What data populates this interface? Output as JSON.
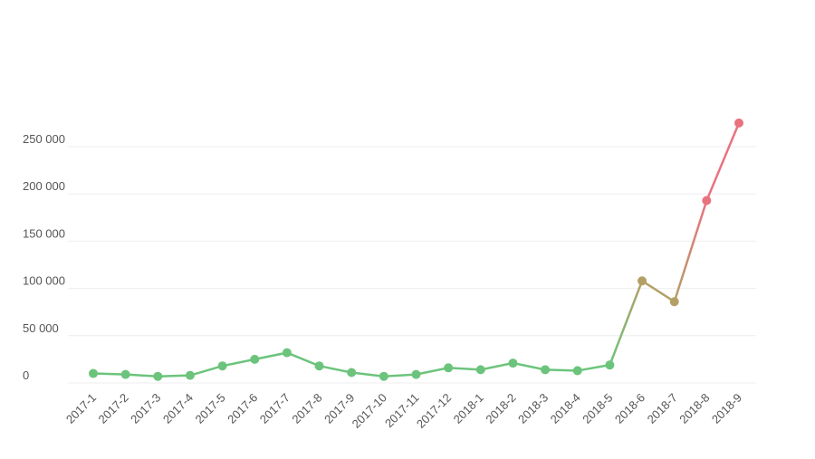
{
  "chart_data": {
    "type": "line",
    "categories": [
      "2017-1",
      "2017-2",
      "2017-3",
      "2017-4",
      "2017-5",
      "2017-6",
      "2017-7",
      "2017-8",
      "2017-9",
      "2017-10",
      "2017-11",
      "2017-12",
      "2018-1",
      "2018-2",
      "2018-3",
      "2018-4",
      "2018-5",
      "2018-6",
      "2018-7",
      "2018-8",
      "2018-9"
    ],
    "values": [
      10000,
      9000,
      7000,
      8000,
      18000,
      25000,
      32000,
      18000,
      11000,
      7000,
      9000,
      16000,
      14000,
      21000,
      14000,
      13000,
      19000,
      108000,
      86000,
      193000,
      275000
    ],
    "point_colors": [
      "#6cc47c",
      "#6cc47c",
      "#6cc47c",
      "#6cc47c",
      "#6cc47c",
      "#6cc47c",
      "#6cc47c",
      "#6cc47c",
      "#6cc47c",
      "#6cc47c",
      "#6cc47c",
      "#6cc47c",
      "#6cc47c",
      "#6cc47c",
      "#6cc47c",
      "#6cc47c",
      "#6cc47c",
      "#b3a067",
      "#b3a067",
      "#e9727f",
      "#e9727f"
    ],
    "ylim": [
      0,
      250000
    ],
    "yticks": [
      0,
      {
        "value": 50000,
        "label": "50 000"
      },
      {
        "value": 100000,
        "label": "100 000"
      },
      {
        "value": 150000,
        "label": "150 000"
      },
      {
        "value": 200000,
        "label": "200 000"
      },
      {
        "value": 250000,
        "label": "250 000"
      }
    ],
    "grid": true
  }
}
